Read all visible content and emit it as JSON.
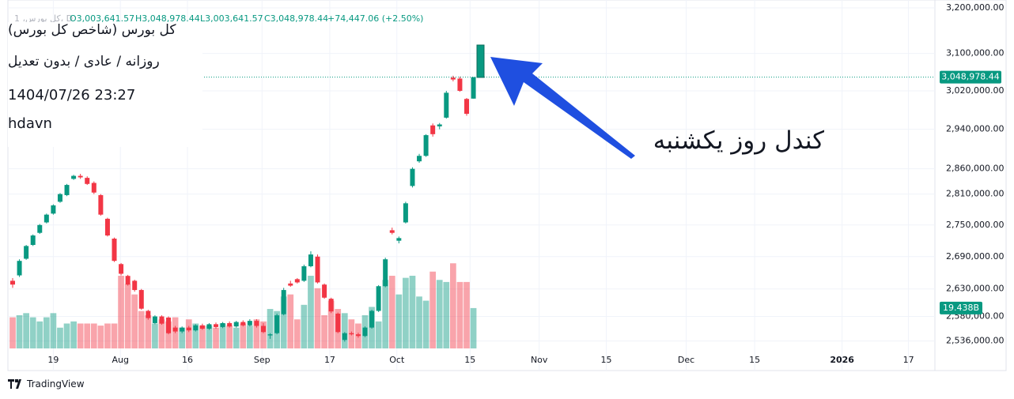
{
  "chart_data": {
    "type": "candlestick",
    "header": {
      "symbol": "کل بورس، 1، D",
      "open": "O3,003,641.57",
      "high": "H3,048,978.44",
      "low": "L3,003,641.57",
      "close": "C3,048,978.44",
      "change": "+74,447.06 (+2.50%)"
    },
    "info": [
      "کل بورس (شاخص کل بورس)",
      "روزانه / عادی / بدون تعدیل",
      "1404/07/26 23:27",
      "hdavn"
    ],
    "annotation": "کندل روز یکشنبه",
    "brand": "TradingView",
    "up_color": "#089981",
    "down_color": "#f23645",
    "log": true,
    "grid": true,
    "xlim": [
      -0.7,
      136.1
    ],
    "xticks": [
      {
        "value": 6,
        "label": "19"
      },
      {
        "value": 15.9,
        "label": "Aug"
      },
      {
        "value": 25.8,
        "label": "16"
      },
      {
        "value": 36.8,
        "label": "Sep"
      },
      {
        "value": 46.8,
        "label": "17"
      },
      {
        "value": 56.7,
        "label": "Oct"
      },
      {
        "value": 67.5,
        "label": "15"
      },
      {
        "value": 77.7,
        "label": "Nov"
      },
      {
        "value": 87.6,
        "label": "15"
      },
      {
        "value": 99.4,
        "label": "Dec"
      },
      {
        "value": 109.5,
        "label": "15"
      },
      {
        "value": 122.4,
        "label": "2026"
      },
      {
        "value": 132.2,
        "label": "17"
      }
    ],
    "ylim": [
      2523000,
      3200000
    ],
    "yticks": [
      {
        "value": 3200000,
        "label": "3,200,000.00"
      },
      {
        "value": 3100000,
        "label": "3,100,000.00"
      },
      {
        "value": 3020000,
        "label": "3,020,000.00"
      },
      {
        "value": 2940000,
        "label": "2,940,000.00"
      },
      {
        "value": 2860000,
        "label": "2,860,000.00"
      },
      {
        "value": 2810000,
        "label": "2,810,000.00"
      },
      {
        "value": 2750000,
        "label": "2,750,000.00"
      },
      {
        "value": 2690000,
        "label": "2,690,000.00"
      },
      {
        "value": 2630000,
        "label": "2,630,000.00"
      },
      {
        "value": 2580000,
        "label": "2,580,000.00"
      },
      {
        "value": 2536000,
        "label": "2,536,000.00"
      }
    ],
    "last_price_label": "3,048,978.44",
    "open": [
      2645000,
      2655000,
      2686000,
      2712000,
      2735000,
      2755000,
      2772000,
      2795000,
      2808000,
      2840000,
      2846000,
      2842000,
      2832000,
      2808000,
      2762000,
      2724000,
      2676000,
      2654000,
      2645000,
      2628000,
      2590000,
      2568000,
      2580000,
      2578000,
      2560000,
      2553000,
      2560000,
      2555000,
      2564000,
      2558000,
      2566000,
      2561000,
      2568000,
      2562000,
      2570000,
      2564000,
      2572000,
      2563000,
      2546000,
      2550000,
      2584000,
      2640000,
      2648000,
      2645000,
      2672000,
      2690000,
      2638000,
      2612000,
      2585000,
      2538000,
      2550000,
      2548000,
      2545000,
      2560000,
      2590000,
      2635000,
      2740000,
      2720000,
      2755000,
      2826000,
      2875000,
      2886000,
      2948000,
      2946000,
      2964000,
      3048000,
      3046000,
      3003000,
      3003641.57
    ],
    "high": [
      2650000,
      2685000,
      2712000,
      2732000,
      2752000,
      2772000,
      2790000,
      2812000,
      2830000,
      2848000,
      2850000,
      2845000,
      2835000,
      2810000,
      2764000,
      2726000,
      2678000,
      2656000,
      2647000,
      2630000,
      2592000,
      2582000,
      2582000,
      2580000,
      2563000,
      2562000,
      2563000,
      2566000,
      2567000,
      2568000,
      2569000,
      2570000,
      2571000,
      2572000,
      2573000,
      2575000,
      2575000,
      2568000,
      2550000,
      2585000,
      2632000,
      2645000,
      2650000,
      2675000,
      2700000,
      2694000,
      2640000,
      2614000,
      2587000,
      2552000,
      2553000,
      2551000,
      2562000,
      2592000,
      2637000,
      2688000,
      2745000,
      2728000,
      2795000,
      2863000,
      2890000,
      2930000,
      2952000,
      2953000,
      3020000,
      3052000,
      3050000,
      3005000,
      3048978.44
    ],
    "low": [
      2632000,
      2652000,
      2684000,
      2710000,
      2733000,
      2753000,
      2770000,
      2793000,
      2806000,
      2838000,
      2840000,
      2828000,
      2810000,
      2768000,
      2728000,
      2680000,
      2655000,
      2636000,
      2625000,
      2592000,
      2574000,
      2566000,
      2565000,
      2548000,
      2550000,
      2550000,
      2552000,
      2553000,
      2556000,
      2556000,
      2558000,
      2559000,
      2560000,
      2560000,
      2562000,
      2562000,
      2560000,
      2550000,
      2540000,
      2548000,
      2582000,
      2634000,
      2640000,
      2643000,
      2670000,
      2640000,
      2612000,
      2586000,
      2550000,
      2535000,
      2546000,
      2542000,
      2543000,
      2558000,
      2588000,
      2633000,
      2732000,
      2715000,
      2753000,
      2823000,
      2872000,
      2884000,
      2925000,
      2940000,
      2962000,
      3040000,
      3018000,
      2968000,
      3003641.57
    ],
    "close": [
      2638000,
      2682000,
      2710000,
      2730000,
      2750000,
      2770000,
      2788000,
      2810000,
      2828000,
      2846000,
      2843000,
      2830000,
      2813000,
      2770000,
      2730000,
      2682000,
      2658000,
      2638000,
      2628000,
      2594000,
      2577000,
      2580000,
      2567000,
      2550000,
      2553000,
      2560000,
      2555000,
      2564000,
      2558000,
      2566000,
      2561000,
      2568000,
      2562000,
      2570000,
      2564000,
      2572000,
      2563000,
      2552000,
      2548000,
      2582000,
      2628000,
      2636000,
      2642000,
      2672000,
      2694000,
      2642000,
      2614000,
      2589000,
      2552000,
      2550000,
      2548000,
      2545000,
      2560000,
      2590000,
      2635000,
      2685000,
      2735000,
      2725000,
      2792000,
      2860000,
      2886000,
      2928000,
      2930000,
      2950000,
      3016000,
      3044000,
      3020000,
      2972000,
      3048978.44
    ],
    "volume": {
      "ylim": [
        0,
        164
      ],
      "last_label": "19.438B",
      "values": [
        15,
        16,
        17,
        15,
        13,
        15,
        17,
        10,
        12,
        13,
        12,
        12,
        12,
        11,
        12,
        12,
        35,
        31,
        26,
        18,
        16,
        12,
        14,
        13,
        15,
        10,
        14,
        12,
        11,
        11,
        10,
        12,
        11,
        10,
        12,
        11,
        14,
        13,
        19,
        18,
        25,
        26,
        14,
        21,
        35,
        29,
        16,
        23,
        19,
        17,
        14,
        12,
        16,
        20,
        13,
        33,
        35,
        26,
        34,
        35,
        25,
        23,
        37,
        33,
        32,
        41,
        32,
        32,
        19.438
      ]
    }
  }
}
